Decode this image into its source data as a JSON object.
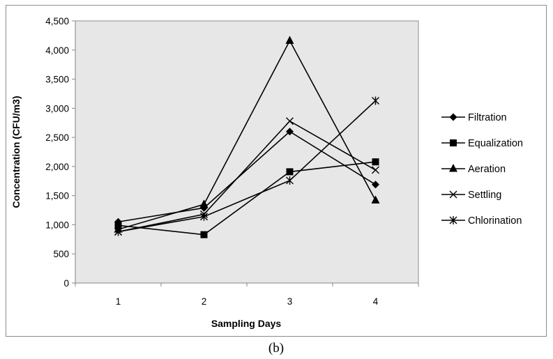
{
  "chart_data": {
    "type": "line",
    "xlabel": "Sampling Days",
    "ylabel": "Concentration (CFU/m3)",
    "categories": [
      "1",
      "2",
      "3",
      "4"
    ],
    "ylim": [
      0,
      4500
    ],
    "yticks": [
      0,
      500,
      1000,
      1500,
      2000,
      2500,
      3000,
      3500,
      4000,
      4500
    ],
    "ytick_labels": [
      "0",
      "500",
      "1,000",
      "1,500",
      "2,000",
      "2,500",
      "3,000",
      "3,500",
      "4,000",
      "4,500"
    ],
    "grid": false,
    "plot_background": "#e7e7e7",
    "legend_position": "right",
    "series": [
      {
        "name": "Filtration",
        "marker": "diamond",
        "values": [
          1050,
          1290,
          2600,
          1690
        ]
      },
      {
        "name": "Equalization",
        "marker": "square",
        "values": [
          990,
          830,
          1910,
          2080
        ]
      },
      {
        "name": "Aeration",
        "marker": "triangle",
        "values": [
          920,
          1350,
          4160,
          1420
        ]
      },
      {
        "name": "Settling",
        "marker": "x",
        "values": [
          880,
          1180,
          2780,
          1940
        ]
      },
      {
        "name": "Chlorination",
        "marker": "star",
        "values": [
          880,
          1140,
          1760,
          3130
        ]
      }
    ]
  },
  "caption": "(b)"
}
